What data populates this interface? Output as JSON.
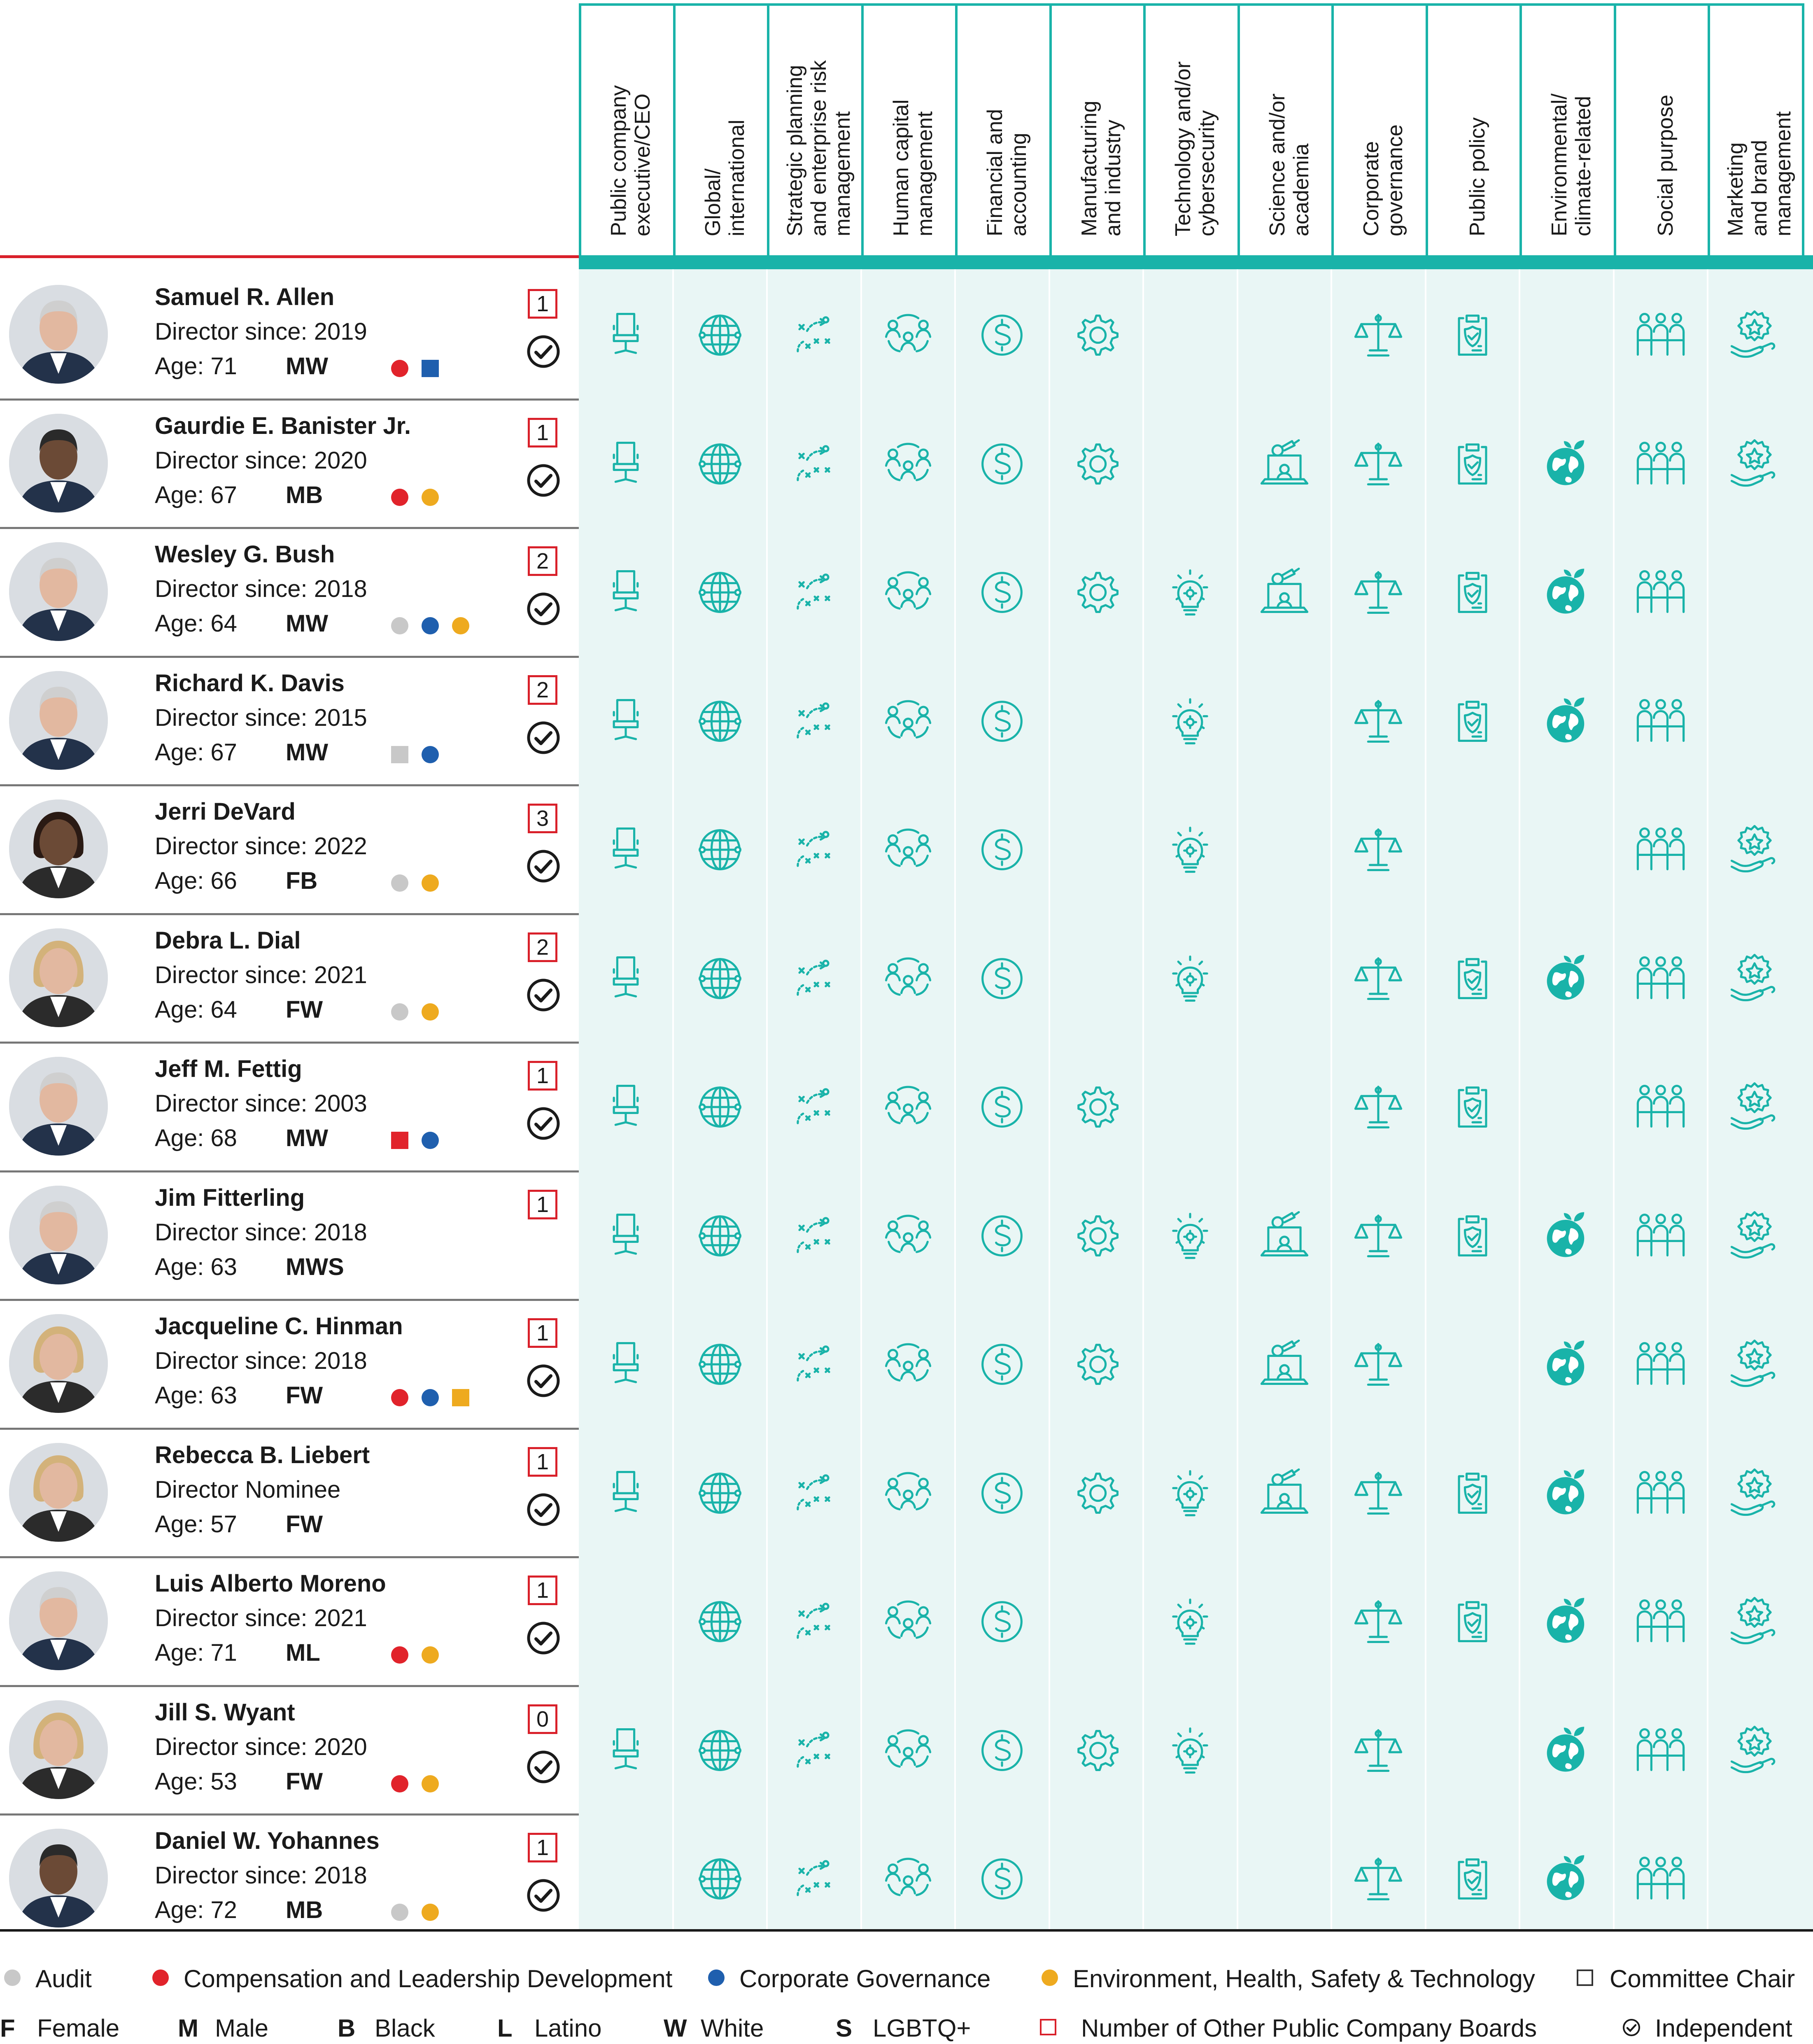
{
  "skills": [
    {
      "key": "ceo",
      "label": "Public company\nexecutive/CEO",
      "icon": "office-chair-icon"
    },
    {
      "key": "global",
      "label": "Global/\ninternational",
      "icon": "globe-icon"
    },
    {
      "key": "strategy",
      "label": "Strategic planning\nand enterprise risk\nmanagement",
      "icon": "strategy-play-icon"
    },
    {
      "key": "hc",
      "label": "Human capital\nmanagement",
      "icon": "people-network-icon"
    },
    {
      "key": "fin",
      "label": "Financial and\naccounting",
      "icon": "dollar-circle-icon"
    },
    {
      "key": "mfg",
      "label": "Manufacturing\nand industry",
      "icon": "gear-icon"
    },
    {
      "key": "tech",
      "label": "Technology and/or\ncybersecurity",
      "icon": "lightbulb-gear-icon"
    },
    {
      "key": "sci",
      "label": "Science and/or\nacademia",
      "icon": "laptop-science-icon"
    },
    {
      "key": "gov",
      "label": "Corporate\ngovernance",
      "icon": "scales-icon"
    },
    {
      "key": "policy",
      "label": "Public policy",
      "icon": "clipboard-shield-icon"
    },
    {
      "key": "env",
      "label": "Environmental/\nclimate-related",
      "icon": "earth-leaf-icon"
    },
    {
      "key": "social",
      "label": "Social purpose",
      "icon": "community-icon"
    },
    {
      "key": "mkt",
      "label": "Marketing\nand brand\nmanagement",
      "icon": "hand-star-icon"
    }
  ],
  "directors": [
    {
      "name": "Samuel R. Allen",
      "since": "Director since: 2019",
      "age": "Age: 71",
      "demo": "MW",
      "committees": [
        {
          "c": "red",
          "chair": false
        },
        {
          "c": "blue",
          "chair": true
        }
      ],
      "boards": "1",
      "independent": true,
      "skills": [
        1,
        1,
        1,
        1,
        1,
        1,
        0,
        0,
        1,
        1,
        0,
        1,
        1
      ]
    },
    {
      "name": "Gaurdie E. Banister Jr.",
      "since": "Director since: 2020",
      "age": "Age: 67",
      "demo": "MB",
      "committees": [
        {
          "c": "red",
          "chair": false
        },
        {
          "c": "yellow",
          "chair": false
        }
      ],
      "boards": "1",
      "independent": true,
      "skills": [
        1,
        1,
        1,
        1,
        1,
        1,
        0,
        1,
        1,
        1,
        1,
        1,
        1
      ]
    },
    {
      "name": "Wesley G. Bush",
      "since": "Director since: 2018",
      "age": "Age: 64",
      "demo": "MW",
      "committees": [
        {
          "c": "gray",
          "chair": false
        },
        {
          "c": "blue",
          "chair": false
        },
        {
          "c": "yellow",
          "chair": false
        }
      ],
      "boards": "2",
      "independent": true,
      "skills": [
        1,
        1,
        1,
        1,
        1,
        1,
        1,
        1,
        1,
        1,
        1,
        1,
        0
      ]
    },
    {
      "name": "Richard K. Davis",
      "since": "Director since: 2015",
      "age": "Age: 67",
      "demo": "MW",
      "committees": [
        {
          "c": "gray",
          "chair": true
        },
        {
          "c": "blue",
          "chair": false
        }
      ],
      "boards": "2",
      "independent": true,
      "skills": [
        1,
        1,
        1,
        1,
        1,
        0,
        1,
        0,
        1,
        1,
        1,
        1,
        0
      ]
    },
    {
      "name": "Jerri DeVard",
      "since": "Director since: 2022",
      "age": "Age: 66",
      "demo": "FB",
      "committees": [
        {
          "c": "gray",
          "chair": false
        },
        {
          "c": "yellow",
          "chair": false
        }
      ],
      "boards": "3",
      "independent": true,
      "skills": [
        1,
        1,
        1,
        1,
        1,
        0,
        1,
        0,
        1,
        0,
        0,
        1,
        1
      ]
    },
    {
      "name": "Debra L. Dial",
      "since": "Director since: 2021",
      "age": "Age: 64",
      "demo": "FW",
      "committees": [
        {
          "c": "gray",
          "chair": false
        },
        {
          "c": "yellow",
          "chair": false
        }
      ],
      "boards": "2",
      "independent": true,
      "skills": [
        1,
        1,
        1,
        1,
        1,
        0,
        1,
        0,
        1,
        1,
        1,
        1,
        1
      ]
    },
    {
      "name": "Jeff M. Fettig",
      "since": "Director since: 2003",
      "age": "Age: 68",
      "demo": "MW",
      "committees": [
        {
          "c": "red",
          "chair": true
        },
        {
          "c": "blue",
          "chair": false
        }
      ],
      "boards": "1",
      "independent": true,
      "skills": [
        1,
        1,
        1,
        1,
        1,
        1,
        0,
        0,
        1,
        1,
        0,
        1,
        1
      ]
    },
    {
      "name": "Jim Fitterling",
      "since": "Director since: 2018",
      "age": "Age: 63",
      "demo": "MWS",
      "committees": [],
      "boards": "1",
      "independent": false,
      "skills": [
        1,
        1,
        1,
        1,
        1,
        1,
        1,
        1,
        1,
        1,
        1,
        1,
        1
      ]
    },
    {
      "name": "Jacqueline C. Hinman",
      "since": "Director since: 2018",
      "age": "Age: 63",
      "demo": "FW",
      "committees": [
        {
          "c": "red",
          "chair": false
        },
        {
          "c": "blue",
          "chair": false
        },
        {
          "c": "yellow",
          "chair": true
        }
      ],
      "boards": "1",
      "independent": true,
      "skills": [
        1,
        1,
        1,
        1,
        1,
        1,
        0,
        1,
        1,
        0,
        1,
        1,
        1
      ]
    },
    {
      "name": "Rebecca B. Liebert",
      "since": "Director Nominee",
      "age": "Age: 57",
      "demo": "FW",
      "committees": [],
      "boards": "1",
      "independent": true,
      "skills": [
        1,
        1,
        1,
        1,
        1,
        1,
        1,
        1,
        1,
        1,
        1,
        1,
        1
      ]
    },
    {
      "name": "Luis Alberto Moreno",
      "since": "Director since: 2021",
      "age": "Age: 71",
      "demo": "ML",
      "committees": [
        {
          "c": "red",
          "chair": false
        },
        {
          "c": "yellow",
          "chair": false
        }
      ],
      "boards": "1",
      "independent": true,
      "skills": [
        0,
        1,
        1,
        1,
        1,
        0,
        1,
        0,
        1,
        1,
        1,
        1,
        1
      ]
    },
    {
      "name": "Jill S. Wyant",
      "since": "Director since: 2020",
      "age": "Age: 53",
      "demo": "FW",
      "committees": [
        {
          "c": "red",
          "chair": false
        },
        {
          "c": "yellow",
          "chair": false
        }
      ],
      "boards": "0",
      "independent": true,
      "skills": [
        1,
        1,
        1,
        1,
        1,
        1,
        1,
        0,
        1,
        0,
        1,
        1,
        1
      ]
    },
    {
      "name": "Daniel W. Yohannes",
      "since": "Director since: 2018",
      "age": "Age: 72",
      "demo": "MB",
      "committees": [
        {
          "c": "gray",
          "chair": false
        },
        {
          "c": "yellow",
          "chair": false
        }
      ],
      "boards": "1",
      "independent": true,
      "skills": [
        0,
        1,
        1,
        1,
        1,
        0,
        0,
        0,
        1,
        1,
        1,
        1,
        0
      ]
    }
  ],
  "colors": {
    "gray": "#c8c8c8",
    "red": "#e1232b",
    "blue": "#1f5fae",
    "yellow": "#eeaa1f",
    "teal": "#19b3a9",
    "tealBg": "#e9f6f5"
  },
  "legend": {
    "committees": [
      {
        "c": "gray",
        "label": "Audit"
      },
      {
        "c": "red",
        "label": "Compensation and Leadership Development"
      },
      {
        "c": "blue",
        "label": "Corporate Governance"
      },
      {
        "c": "yellow",
        "label": "Environment, Health, Safety & Technology"
      }
    ],
    "chair_label": "Committee Chair",
    "codes": [
      {
        "code": "F",
        "label": "Female"
      },
      {
        "code": "M",
        "label": "Male"
      },
      {
        "code": "B",
        "label": "Black"
      },
      {
        "code": "L",
        "label": "Latino"
      },
      {
        "code": "W",
        "label": "White"
      },
      {
        "code": "S",
        "label": "LGBTQ+"
      }
    ],
    "boards_label": "Number of Other Public Company Boards",
    "independent_label": "Independent"
  }
}
